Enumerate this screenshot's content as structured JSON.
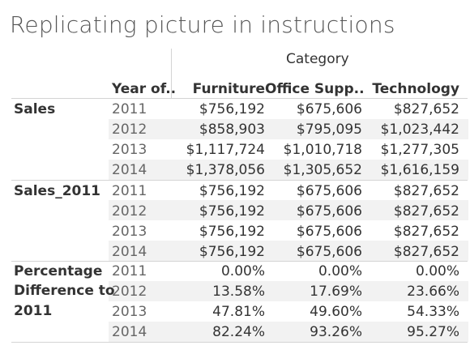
{
  "title": "Replicating picture in instructions",
  "category_header": "Category",
  "year_header": "Year of..",
  "columns": [
    "Furniture",
    "Office Supp..",
    "Technology"
  ],
  "measures": [
    {
      "label": "Sales",
      "rows": [
        {
          "year": "2011",
          "values": [
            "$756,192",
            "$675,606",
            "$827,652"
          ]
        },
        {
          "year": "2012",
          "values": [
            "$858,903",
            "$795,095",
            "$1,023,442"
          ]
        },
        {
          "year": "2013",
          "values": [
            "$1,117,724",
            "$1,010,718",
            "$1,277,305"
          ]
        },
        {
          "year": "2014",
          "values": [
            "$1,378,056",
            "$1,305,652",
            "$1,616,159"
          ]
        }
      ]
    },
    {
      "label": "Sales_2011",
      "rows": [
        {
          "year": "2011",
          "values": [
            "$756,192",
            "$675,606",
            "$827,652"
          ]
        },
        {
          "year": "2012",
          "values": [
            "$756,192",
            "$675,606",
            "$827,652"
          ]
        },
        {
          "year": "2013",
          "values": [
            "$756,192",
            "$675,606",
            "$827,652"
          ]
        },
        {
          "year": "2014",
          "values": [
            "$756,192",
            "$675,606",
            "$827,652"
          ]
        }
      ]
    },
    {
      "label_lines": [
        "Percentage",
        "Difference to",
        "2011"
      ],
      "rows": [
        {
          "year": "2011",
          "values": [
            "0.00%",
            "0.00%",
            "0.00%"
          ]
        },
        {
          "year": "2012",
          "values": [
            "13.58%",
            "17.69%",
            "23.66%"
          ]
        },
        {
          "year": "2013",
          "values": [
            "47.81%",
            "49.60%",
            "54.33%"
          ]
        },
        {
          "year": "2014",
          "values": [
            "82.24%",
            "93.26%",
            "95.27%"
          ]
        }
      ]
    }
  ]
}
